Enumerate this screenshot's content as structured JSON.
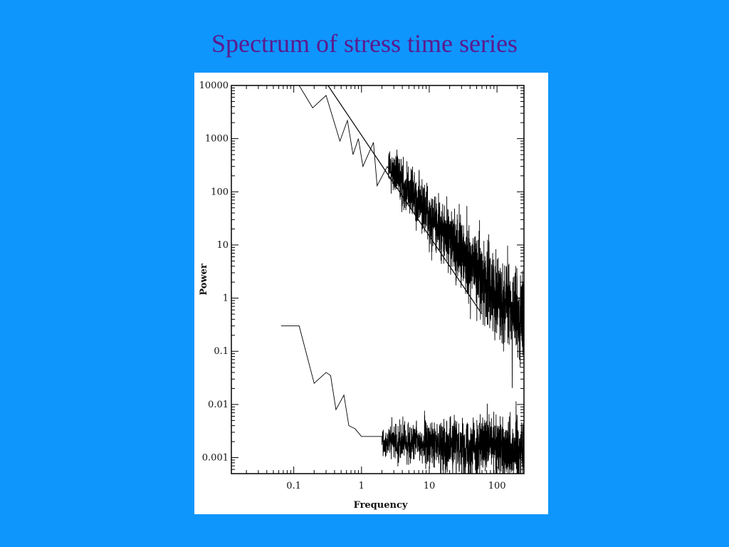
{
  "slide": {
    "title": "Spectrum of stress time series",
    "background_color": "#0E96FC",
    "title_color": "#5B1A8E"
  },
  "chart_data": {
    "type": "line",
    "xscale": "log",
    "yscale": "log",
    "xlabel": "Frequency",
    "ylabel": "Power",
    "xlim": [
      0.012,
      250
    ],
    "ylim": [
      0.0005,
      10000
    ],
    "x_tick_labels": [
      "0.1",
      "1",
      "10",
      "100"
    ],
    "x_ticks": [
      0.1,
      1,
      10,
      100
    ],
    "y_tick_labels": [
      "10000",
      "1000",
      "100",
      "10",
      "1",
      "0.1",
      "0.01",
      "0.001"
    ],
    "y_ticks": [
      10000,
      1000,
      100,
      10,
      1,
      0.1,
      0.01,
      0.001
    ],
    "grid": false,
    "legend": "none",
    "series": [
      {
        "kind": "noisy-spectrum",
        "low_freq_points": [
          [
            0.12,
            10000
          ],
          [
            0.19,
            3800
          ],
          [
            0.3,
            6500
          ],
          [
            0.48,
            900
          ],
          [
            0.62,
            2200
          ],
          [
            0.75,
            500
          ],
          [
            0.9,
            1000
          ],
          [
            1.05,
            300
          ],
          [
            1.5,
            850
          ],
          [
            1.7,
            130
          ],
          [
            2.4,
            300
          ],
          [
            3.4,
            130
          ]
        ],
        "trend": {
          "from": [
            2.5,
            300
          ],
          "to": [
            250,
            0.3
          ]
        }
      },
      {
        "kind": "fitted-power-law",
        "points": [
          [
            0.32,
            10000
          ],
          [
            60,
            0.5
          ]
        ]
      },
      {
        "kind": "noisy-spectrum",
        "low_freq_points": [
          [
            0.065,
            0.3
          ],
          [
            0.12,
            0.3
          ],
          [
            0.2,
            0.025
          ],
          [
            0.3,
            0.04
          ],
          [
            0.35,
            0.035
          ],
          [
            0.42,
            0.008
          ],
          [
            0.55,
            0.015
          ],
          [
            0.65,
            0.004
          ],
          [
            0.8,
            0.0035
          ],
          [
            1.0,
            0.0025
          ],
          [
            2.0,
            0.0025
          ]
        ],
        "trend": {
          "from": [
            2.0,
            0.002
          ],
          "to": [
            250,
            0.0015
          ]
        }
      }
    ]
  }
}
